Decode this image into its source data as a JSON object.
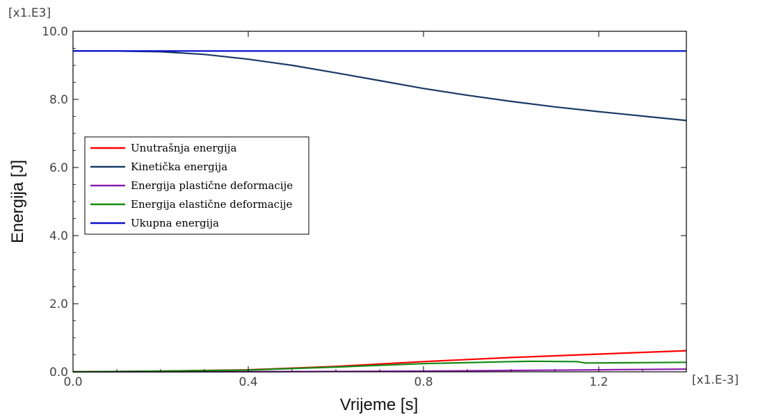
{
  "chart_data": {
    "type": "line",
    "xlabel": "Vrijeme [s]",
    "ylabel": "Energija [J]",
    "x_multiplier": "[x1.E-3]",
    "y_multiplier": "[x1.E3]",
    "xlim": [
      0,
      1.4
    ],
    "ylim": [
      0,
      10
    ],
    "x_ticks": [
      0.0,
      0.4,
      0.8,
      1.2
    ],
    "x_tick_labels": [
      "0.0",
      "0.4",
      "0.8",
      "1.2"
    ],
    "y_ticks": [
      0,
      2,
      4,
      6,
      8,
      10
    ],
    "y_tick_labels": [
      "0.0",
      "2.0",
      "4.0",
      "6.0",
      "8.0",
      "10.0"
    ],
    "legend_position": "middle-left",
    "series": [
      {
        "name": "Unutrašnja energija",
        "color": "#ff0000",
        "x": [
          0,
          0.2,
          0.4,
          0.6,
          0.8,
          1.0,
          1.2,
          1.4
        ],
        "y": [
          0,
          0.02,
          0.06,
          0.16,
          0.3,
          0.42,
          0.52,
          0.62
        ]
      },
      {
        "name": "Kinetička energija",
        "color": "#1a3a66",
        "x": [
          0,
          0.1,
          0.2,
          0.3,
          0.4,
          0.5,
          0.6,
          0.7,
          0.8,
          0.9,
          1.0,
          1.1,
          1.2,
          1.3,
          1.4
        ],
        "y": [
          9.42,
          9.42,
          9.4,
          9.32,
          9.18,
          9.0,
          8.78,
          8.55,
          8.32,
          8.12,
          7.94,
          7.78,
          7.64,
          7.51,
          7.38
        ]
      },
      {
        "name": "Energija plastične deformacije",
        "color": "#8a1fb0",
        "x": [
          0,
          0.4,
          0.8,
          1.0,
          1.2,
          1.4
        ],
        "y": [
          0,
          0.005,
          0.02,
          0.04,
          0.06,
          0.08
        ]
      },
      {
        "name": "Energija elastične deformacije",
        "color": "#138a13",
        "x": [
          0,
          0.2,
          0.4,
          0.6,
          0.8,
          1.0,
          1.05,
          1.15,
          1.17,
          1.3,
          1.4
        ],
        "y": [
          0,
          0.02,
          0.05,
          0.14,
          0.24,
          0.3,
          0.31,
          0.3,
          0.26,
          0.27,
          0.28
        ]
      },
      {
        "name": "Ukupna energija",
        "color": "#0a10cc",
        "x": [
          0,
          0.4,
          0.8,
          1.2,
          1.4
        ],
        "y": [
          9.42,
          9.42,
          9.42,
          9.42,
          9.42
        ]
      }
    ]
  }
}
